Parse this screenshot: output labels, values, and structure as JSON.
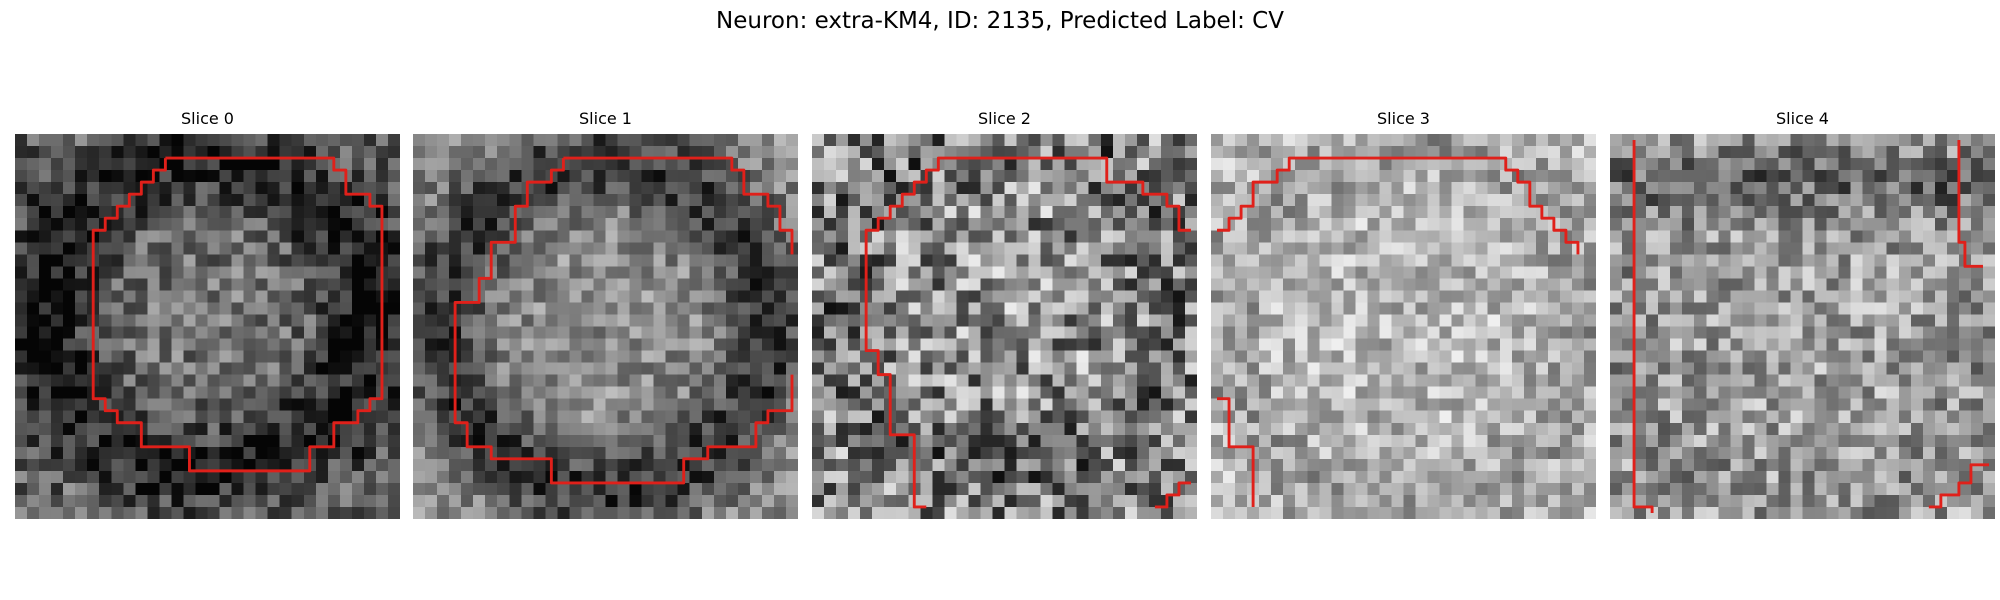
{
  "figure": {
    "title": "Neuron: extra-KM4, ID: 2135, Predicted Label: CV"
  },
  "grid_size": 32,
  "contour_color": "#e0201a",
  "slices": [
    {
      "title": "Slice 0",
      "brightness": "dark ring, mid-gray interior"
    },
    {
      "title": "Slice 1",
      "brightness": "dark ring, mid-gray interior"
    },
    {
      "title": "Slice 2",
      "brightness": "noisy mid-gray"
    },
    {
      "title": "Slice 3",
      "brightness": "light gray"
    },
    {
      "title": "Slice 4",
      "brightness": "mid-gray with dark upper band"
    }
  ]
}
